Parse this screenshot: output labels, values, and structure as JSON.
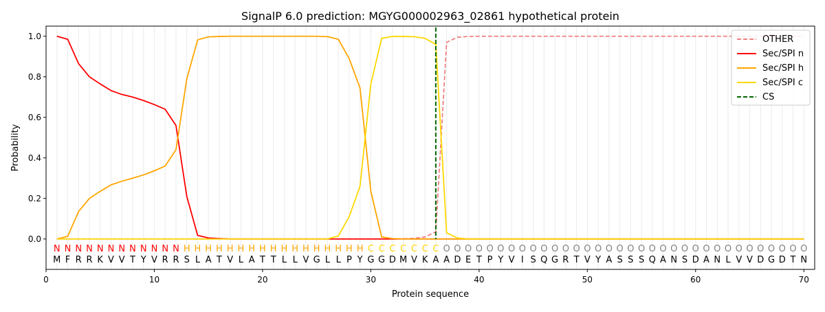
{
  "chart_data": {
    "type": "line",
    "title": "SignalP 6.0 prediction: MGYG000002963_02861 hypothetical protein",
    "xlabel": "Protein sequence",
    "ylabel": "Probability",
    "xlim": [
      0,
      71
    ],
    "ylim": [
      -0.15,
      1.05
    ],
    "xticks": [
      0,
      10,
      20,
      30,
      40,
      50,
      60,
      70
    ],
    "yticks": [
      0.0,
      0.2,
      0.4,
      0.6,
      0.8,
      1.0
    ],
    "grid": "vertical at each residue",
    "legend_placement": "top-right",
    "sequence": "MFRRKVVTYVRRSLATVLATTLLVGLLPYGGDMVKAADETPYVISQGRTVYASSSQANSDANLVVDGDTN",
    "labels": "NNNNNNNNNNNNHHHHHHHHHHHHHHHHHCCCCCCCOOOOOOOOOOOOOOOOOOOOOOOOOOOOOOOOOO",
    "label_colors": {
      "N": "#ff0000",
      "H": "#ffa500",
      "C": "#ffd700",
      "O": "#808080"
    },
    "cleavage_site": 36,
    "series": [
      {
        "name": "OTHER",
        "color": "#f08080",
        "dash": true,
        "values": [
          0,
          0,
          0,
          0,
          0,
          0,
          0,
          0,
          0,
          0,
          0,
          0,
          0,
          0,
          0,
          0,
          0,
          0,
          0,
          0,
          0,
          0,
          0,
          0,
          0,
          0,
          0,
          0,
          0,
          0,
          0,
          0,
          0.001,
          0.003,
          0.01,
          0.035,
          0.97,
          0.995,
          0.999,
          1,
          1,
          1,
          1,
          1,
          1,
          1,
          1,
          1,
          1,
          1,
          1,
          1,
          1,
          1,
          1,
          1,
          1,
          1,
          1,
          1,
          1,
          1,
          1,
          1,
          1,
          1,
          1,
          1,
          1,
          1
        ]
      },
      {
        "name": "Sec/SPI n",
        "color": "#ff0000",
        "dash": false,
        "values": [
          1.0,
          0.985,
          0.865,
          0.8,
          0.765,
          0.732,
          0.713,
          0.7,
          0.683,
          0.663,
          0.64,
          0.56,
          0.21,
          0.018,
          0.005,
          0.002,
          0,
          0,
          0,
          0,
          0,
          0,
          0,
          0,
          0,
          0,
          0,
          0,
          0,
          0,
          0,
          0,
          0,
          0,
          0,
          0,
          0,
          0,
          0,
          0,
          0,
          0,
          0,
          0,
          0,
          0,
          0,
          0,
          0,
          0,
          0,
          0,
          0,
          0,
          0,
          0,
          0,
          0,
          0,
          0,
          0,
          0,
          0,
          0,
          0,
          0,
          0,
          0,
          0,
          0
        ]
      },
      {
        "name": "Sec/SPI h",
        "color": "#ffa500",
        "dash": false,
        "values": [
          0,
          0.013,
          0.135,
          0.2,
          0.235,
          0.267,
          0.285,
          0.3,
          0.316,
          0.336,
          0.36,
          0.44,
          0.79,
          0.982,
          0.997,
          0.999,
          1,
          1,
          1,
          1,
          1,
          1,
          1,
          1,
          1,
          0.998,
          0.985,
          0.89,
          0.745,
          0.235,
          0.01,
          0.002,
          0,
          0,
          0,
          0,
          0,
          0,
          0,
          0,
          0,
          0,
          0,
          0,
          0,
          0,
          0,
          0,
          0,
          0,
          0,
          0,
          0,
          0,
          0,
          0,
          0,
          0,
          0,
          0,
          0,
          0,
          0,
          0,
          0,
          0,
          0,
          0,
          0,
          0
        ]
      },
      {
        "name": "Sec/SPI c",
        "color": "#ffd700",
        "dash": false,
        "values": [
          0,
          0,
          0,
          0,
          0,
          0,
          0,
          0,
          0,
          0,
          0,
          0,
          0,
          0,
          0,
          0,
          0,
          0,
          0,
          0,
          0,
          0,
          0,
          0,
          0,
          0,
          0.015,
          0.11,
          0.26,
          0.765,
          0.99,
          0.999,
          0.999,
          0.998,
          0.99,
          0.96,
          0.03,
          0.005,
          0,
          0,
          0,
          0,
          0,
          0,
          0,
          0,
          0,
          0,
          0,
          0,
          0,
          0,
          0,
          0,
          0,
          0,
          0,
          0,
          0,
          0,
          0,
          0,
          0,
          0,
          0,
          0,
          0,
          0,
          0,
          0
        ]
      },
      {
        "name": "CS",
        "color": "#006400",
        "dash": true,
        "vertical_at": 36
      }
    ]
  }
}
